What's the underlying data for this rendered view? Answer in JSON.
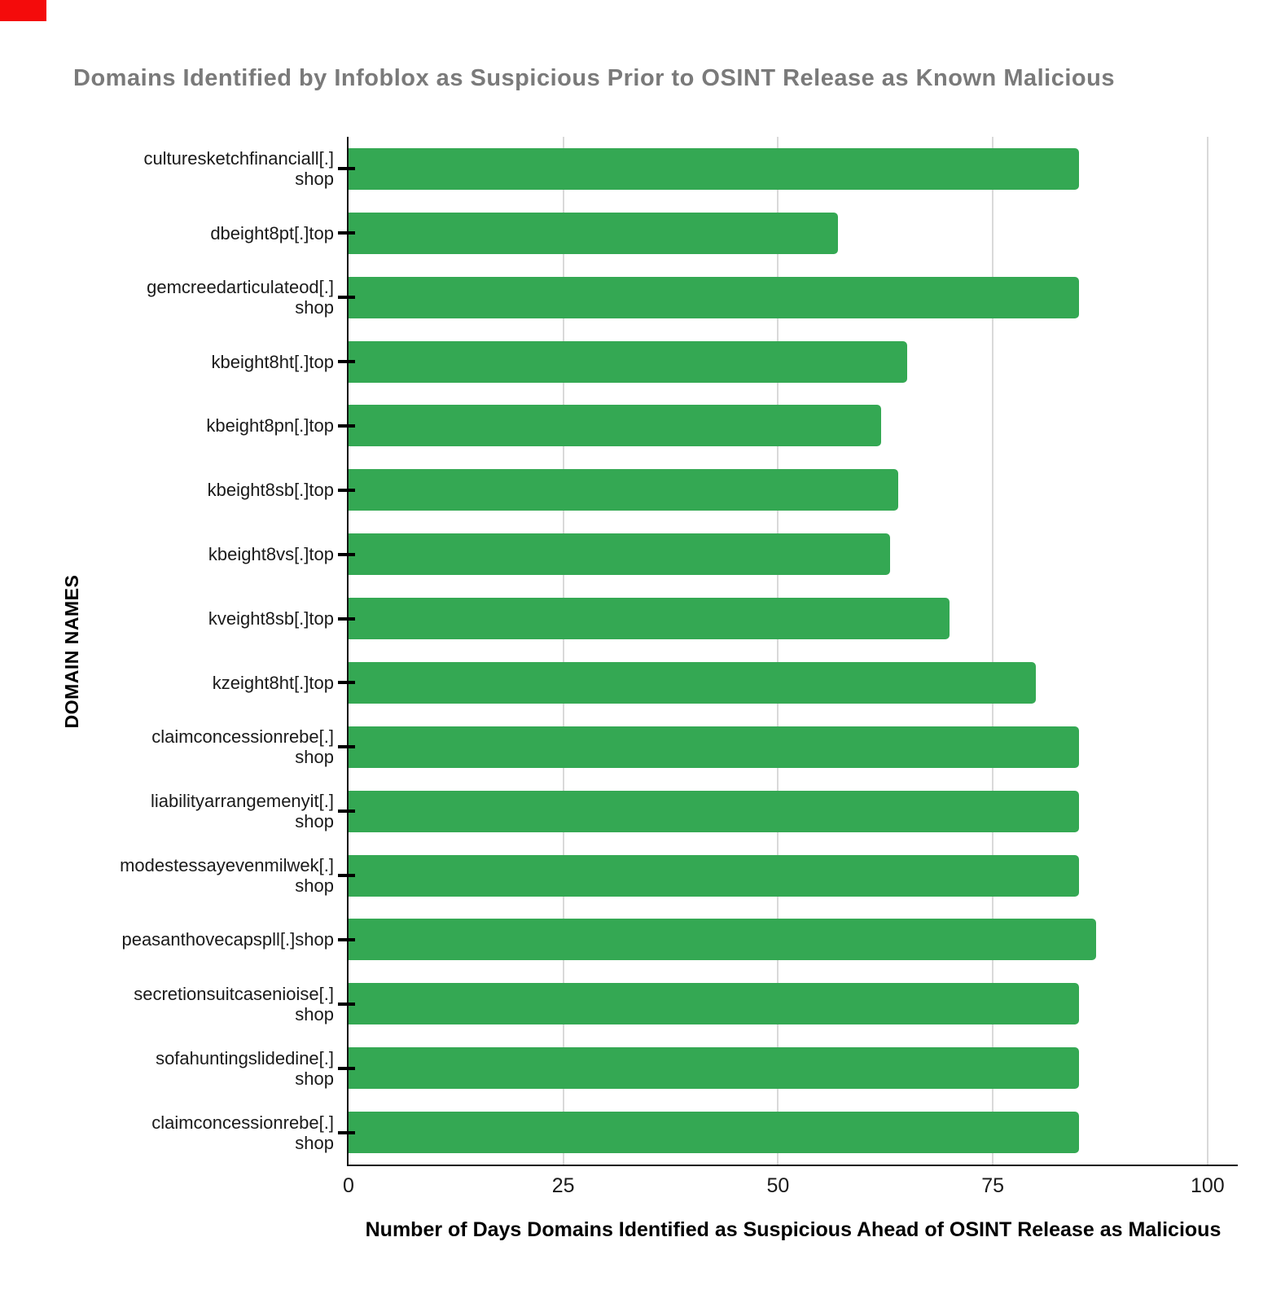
{
  "colors": {
    "bar": "#34a853",
    "grid": "#d9d9d9",
    "axis": "#111111",
    "title_text": "#7a7a7a",
    "red_marker": "#f40b0b"
  },
  "chart_data": {
    "type": "bar",
    "orientation": "horizontal",
    "title": "Domains Identified by Infoblox as Suspicious Prior to OSINT Release as Known Malicious",
    "xlabel": "Number of Days Domains Identified as Suspicious Ahead of OSINT Release as Malicious",
    "ylabel": "DOMAIN NAMES",
    "xlim": [
      0,
      100
    ],
    "xticks": [
      0,
      25,
      50,
      75,
      100
    ],
    "grid": "vertical-gridlines-on",
    "legend": "none",
    "categories": [
      "culturesketchfinanciall[.]shop",
      "dbeight8pt[.]top",
      "gemcreedarticulateod[.]shop",
      "kbeight8ht[.]top",
      "kbeight8pn[.]top",
      "kbeight8sb[.]top",
      "kbeight8vs[.]top",
      "kveight8sb[.]top",
      "kzeight8ht[.]top",
      "claimconcessionrebe[.]shop",
      "liabilityarrangemenyit[.]shop",
      "modestessayevenmilwek[.]shop",
      "peasanthovecapspll[.]shop",
      "secretionsuitcasenioise[.]shop",
      "sofahuntingslidedine[.]shop",
      "claimconcessionrebe[.]shop"
    ],
    "category_label_lines": [
      [
        "culturesketchfinanciall[.]",
        "shop"
      ],
      [
        "dbeight8pt[.]top"
      ],
      [
        "gemcreedarticulateod[.]",
        "shop"
      ],
      [
        "kbeight8ht[.]top"
      ],
      [
        "kbeight8pn[.]top"
      ],
      [
        "kbeight8sb[.]top"
      ],
      [
        "kbeight8vs[.]top"
      ],
      [
        "kveight8sb[.]top"
      ],
      [
        "kzeight8ht[.]top"
      ],
      [
        "claimconcessionrebe[.]",
        "shop"
      ],
      [
        "liabilityarrangemenyit[.]",
        "shop"
      ],
      [
        "modestessayevenmilwek[.]",
        "shop"
      ],
      [
        "peasanthovecapspll[.]shop"
      ],
      [
        "secretionsuitcasenioise[.]",
        "shop"
      ],
      [
        "sofahuntingslidedine[.]",
        "shop"
      ],
      [
        "claimconcessionrebe[.]",
        "shop"
      ]
    ],
    "values": [
      85,
      57,
      85,
      65,
      62,
      64,
      63,
      70,
      80,
      85,
      85,
      85,
      87,
      85,
      85,
      85
    ]
  }
}
